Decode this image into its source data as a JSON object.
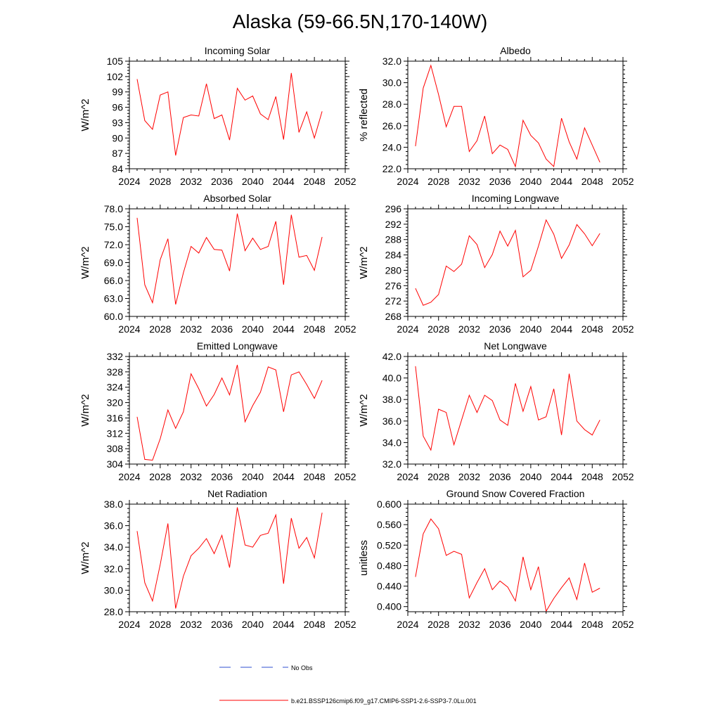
{
  "title": "Alaska (59-66.5N,170-140W)",
  "chart_data": [
    {
      "type": "line",
      "title": "Incoming Solar",
      "xlabel": "",
      "ylabel": "W/m^2",
      "xlim": [
        2024,
        2052
      ],
      "ylim": [
        84,
        105
      ],
      "x_ticks": [
        "2024",
        "2028",
        "2032",
        "2036",
        "2040",
        "2044",
        "2048",
        "2052"
      ],
      "y_ticks": [
        "84",
        "87",
        "90",
        "93",
        "96",
        "99",
        "102",
        "105"
      ],
      "series": [
        {
          "name": "b.e21.BSSP126cmip6.f09_g17.CMIP6-SSP1-2.6-SSP3-7.0Lu.001",
          "color": "#ff0000",
          "x": [
            2025,
            2026,
            2027,
            2028,
            2029,
            2030,
            2031,
            2032,
            2033,
            2034,
            2035,
            2036,
            2037,
            2038,
            2039,
            2040,
            2041,
            2042,
            2043,
            2044,
            2045,
            2046,
            2047,
            2048,
            2049
          ],
          "y": [
            101.5,
            93.4,
            91.7,
            98.4,
            99.0,
            86.6,
            94.0,
            94.5,
            94.3,
            100.6,
            93.8,
            94.5,
            89.6,
            99.7,
            97.4,
            98.2,
            94.7,
            93.6,
            98.1,
            89.7,
            102.7,
            91.1,
            95.1,
            90.0,
            95.2
          ]
        }
      ]
    },
    {
      "type": "line",
      "title": "Albedo",
      "xlabel": "",
      "ylabel": "% reflected",
      "xlim": [
        2024,
        2052
      ],
      "ylim": [
        22,
        32
      ],
      "x_ticks": [
        "2024",
        "2028",
        "2032",
        "2036",
        "2040",
        "2044",
        "2048",
        "2052"
      ],
      "y_ticks": [
        "22.0",
        "24.0",
        "26.0",
        "28.0",
        "30.0",
        "32.0"
      ],
      "series": [
        {
          "name": "b.e21.BSSP126cmip6.f09_g17.CMIP6-SSP1-2.6-SSP3-7.0Lu.001",
          "color": "#ff0000",
          "x": [
            2025,
            2026,
            2027,
            2028,
            2029,
            2030,
            2031,
            2032,
            2033,
            2034,
            2035,
            2036,
            2037,
            2038,
            2039,
            2040,
            2041,
            2042,
            2043,
            2044,
            2045,
            2046,
            2047,
            2048,
            2049
          ],
          "y": [
            24.1,
            29.5,
            31.6,
            28.9,
            25.9,
            27.8,
            27.8,
            23.6,
            24.6,
            26.9,
            23.4,
            24.2,
            23.8,
            22.2,
            26.5,
            25.1,
            24.4,
            22.9,
            22.2,
            26.7,
            24.5,
            22.9,
            25.8,
            24.2,
            22.6
          ]
        }
      ]
    },
    {
      "type": "line",
      "title": "Absorbed Solar",
      "xlabel": "",
      "ylabel": "W/m^2",
      "xlim": [
        2024,
        2052
      ],
      "ylim": [
        60,
        78
      ],
      "x_ticks": [
        "2024",
        "2028",
        "2032",
        "2036",
        "2040",
        "2044",
        "2048",
        "2052"
      ],
      "y_ticks": [
        "60.0",
        "63.0",
        "66.0",
        "69.0",
        "72.0",
        "75.0",
        "78.0"
      ],
      "series": [
        {
          "name": "b.e21.BSSP126cmip6.f09_g17.CMIP6-SSP1-2.6-SSP3-7.0Lu.001",
          "color": "#ff0000",
          "x": [
            2025,
            2026,
            2027,
            2028,
            2029,
            2030,
            2031,
            2032,
            2033,
            2034,
            2035,
            2036,
            2037,
            2038,
            2039,
            2040,
            2041,
            2042,
            2043,
            2044,
            2045,
            2046,
            2047,
            2048,
            2049
          ],
          "y": [
            76.5,
            65.3,
            62.3,
            69.5,
            73.0,
            62.0,
            67.3,
            71.7,
            70.6,
            73.2,
            71.2,
            71.1,
            67.6,
            77.2,
            71.0,
            73.1,
            71.2,
            71.7,
            75.9,
            65.3,
            77.0,
            69.9,
            70.2,
            67.7,
            73.3
          ]
        }
      ]
    },
    {
      "type": "line",
      "title": "Incoming Longwave",
      "xlabel": "",
      "ylabel": "W/m^2",
      "xlim": [
        2024,
        2052
      ],
      "ylim": [
        268,
        296
      ],
      "x_ticks": [
        "2024",
        "2028",
        "2032",
        "2036",
        "2040",
        "2044",
        "2048",
        "2052"
      ],
      "y_ticks": [
        "268",
        "272",
        "276",
        "280",
        "284",
        "288",
        "292",
        "296"
      ],
      "series": [
        {
          "name": "b.e21.BSSP126cmip6.f09_g17.CMIP6-SSP1-2.6-SSP3-7.0Lu.001",
          "color": "#ff0000",
          "x": [
            2025,
            2026,
            2027,
            2028,
            2029,
            2030,
            2031,
            2032,
            2033,
            2034,
            2035,
            2036,
            2037,
            2038,
            2039,
            2040,
            2041,
            2042,
            2043,
            2044,
            2045,
            2046,
            2047,
            2048,
            2049
          ],
          "y": [
            275.3,
            270.9,
            271.7,
            273.7,
            281.1,
            279.7,
            281.6,
            289.0,
            286.7,
            280.7,
            284.1,
            290.2,
            286.3,
            290.4,
            278.3,
            280.0,
            286.3,
            293.1,
            289.4,
            283.1,
            286.6,
            291.9,
            289.5,
            286.4,
            289.6
          ]
        }
      ]
    },
    {
      "type": "line",
      "title": "Emitted Longwave",
      "xlabel": "",
      "ylabel": "W/m^2",
      "xlim": [
        2024,
        2052
      ],
      "ylim": [
        304,
        332
      ],
      "x_ticks": [
        "2024",
        "2028",
        "2032",
        "2036",
        "2040",
        "2044",
        "2048",
        "2052"
      ],
      "y_ticks": [
        "304",
        "308",
        "312",
        "316",
        "320",
        "324",
        "328",
        "332"
      ],
      "series": [
        {
          "name": "b.e21.BSSP126cmip6.f09_g17.CMIP6-SSP1-2.6-SSP3-7.0Lu.001",
          "color": "#ff0000",
          "x": [
            2025,
            2026,
            2027,
            2028,
            2029,
            2030,
            2031,
            2032,
            2033,
            2034,
            2035,
            2036,
            2037,
            2038,
            2039,
            2040,
            2041,
            2042,
            2043,
            2044,
            2045,
            2046,
            2047,
            2048,
            2049
          ],
          "y": [
            316.3,
            305.2,
            305.0,
            310.6,
            318.1,
            313.3,
            317.6,
            327.5,
            323.6,
            319.1,
            322.1,
            326.4,
            322.0,
            329.8,
            315.0,
            319.2,
            322.7,
            329.3,
            328.5,
            317.6,
            327.2,
            328.0,
            324.7,
            321.1,
            325.8
          ]
        }
      ]
    },
    {
      "type": "line",
      "title": "Net Longwave",
      "xlabel": "",
      "ylabel": "W/m^2",
      "xlim": [
        2024,
        2052
      ],
      "ylim": [
        32,
        42
      ],
      "x_ticks": [
        "2024",
        "2028",
        "2032",
        "2036",
        "2040",
        "2044",
        "2048",
        "2052"
      ],
      "y_ticks": [
        "32.0",
        "34.0",
        "36.0",
        "38.0",
        "40.0",
        "42.0"
      ],
      "series": [
        {
          "name": "b.e21.BSSP126cmip6.f09_g17.CMIP6-SSP1-2.6-SSP3-7.0Lu.001",
          "color": "#ff0000",
          "x": [
            2025,
            2026,
            2027,
            2028,
            2029,
            2030,
            2031,
            2032,
            2033,
            2034,
            2035,
            2036,
            2037,
            2038,
            2039,
            2040,
            2041,
            2042,
            2043,
            2044,
            2045,
            2046,
            2047,
            2048,
            2049
          ],
          "y": [
            41.1,
            34.6,
            33.3,
            37.1,
            36.8,
            33.8,
            36.1,
            38.4,
            36.8,
            38.4,
            37.9,
            36.1,
            35.6,
            39.5,
            36.9,
            39.2,
            36.1,
            36.4,
            39.0,
            34.7,
            40.4,
            36.0,
            35.2,
            34.7,
            36.1
          ]
        }
      ]
    },
    {
      "type": "line",
      "title": "Net Radiation",
      "xlabel": "",
      "ylabel": "W/m^2",
      "xlim": [
        2024,
        2052
      ],
      "ylim": [
        28,
        38
      ],
      "x_ticks": [
        "2024",
        "2028",
        "2032",
        "2036",
        "2040",
        "2044",
        "2048",
        "2052"
      ],
      "y_ticks": [
        "28.0",
        "30.0",
        "32.0",
        "34.0",
        "36.0",
        "38.0"
      ],
      "series": [
        {
          "name": "b.e21.BSSP126cmip6.f09_g17.CMIP6-SSP1-2.6-SSP3-7.0Lu.001",
          "color": "#ff0000",
          "x": [
            2025,
            2026,
            2027,
            2028,
            2029,
            2030,
            2031,
            2032,
            2033,
            2034,
            2035,
            2036,
            2037,
            2038,
            2039,
            2040,
            2041,
            2042,
            2043,
            2044,
            2045,
            2046,
            2047,
            2048,
            2049
          ],
          "y": [
            35.5,
            30.7,
            29.0,
            32.4,
            36.2,
            28.3,
            31.3,
            33.2,
            33.9,
            34.8,
            33.4,
            35.1,
            32.1,
            37.7,
            34.2,
            34.0,
            35.1,
            35.3,
            37.0,
            30.6,
            36.7,
            33.9,
            34.9,
            33.0,
            37.2
          ]
        }
      ]
    },
    {
      "type": "line",
      "title": "Ground Snow Covered Fraction",
      "xlabel": "",
      "ylabel": "unitless",
      "xlim": [
        2024,
        2052
      ],
      "ylim": [
        0.39,
        0.6
      ],
      "x_ticks": [
        "2024",
        "2028",
        "2032",
        "2036",
        "2040",
        "2044",
        "2048",
        "2052"
      ],
      "y_ticks": [
        "0.400",
        "0.440",
        "0.480",
        "0.520",
        "0.560",
        "0.600"
      ],
      "series": [
        {
          "name": "b.e21.BSSP126cmip6.f09_g17.CMIP6-SSP1-2.6-SSP3-7.0Lu.001",
          "color": "#ff0000",
          "x": [
            2025,
            2026,
            2027,
            2028,
            2029,
            2030,
            2031,
            2032,
            2033,
            2034,
            2035,
            2036,
            2037,
            2038,
            2039,
            2040,
            2041,
            2042,
            2043,
            2044,
            2045,
            2046,
            2047,
            2048,
            2049
          ],
          "y": [
            0.458,
            0.542,
            0.571,
            0.552,
            0.5,
            0.508,
            0.502,
            0.417,
            0.447,
            0.474,
            0.433,
            0.45,
            0.438,
            0.411,
            0.497,
            0.433,
            0.478,
            0.391,
            0.416,
            0.437,
            0.456,
            0.414,
            0.485,
            0.428,
            0.436
          ]
        }
      ]
    }
  ],
  "legend": [
    {
      "label": "No Obs",
      "color": "#2f4fd0",
      "dash": true
    },
    {
      "label": "b.e21.BSSP126cmip6.f09_g17.CMIP6-SSP1-2.6-SSP3-7.0Lu.001",
      "color": "#ff0000",
      "dash": false
    }
  ]
}
